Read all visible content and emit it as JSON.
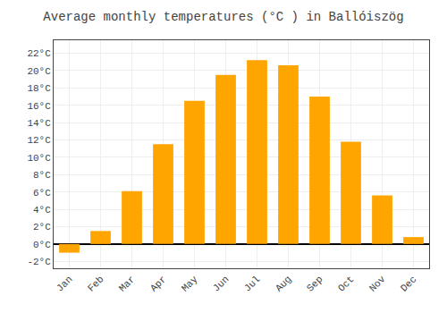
{
  "chart_data": {
    "type": "bar",
    "title": "Average monthly temperatures (°C ) in Ballóiszög",
    "categories": [
      "Jan",
      "Feb",
      "Mar",
      "Apr",
      "May",
      "Jun",
      "Jul",
      "Aug",
      "Sep",
      "Oct",
      "Nov",
      "Dec"
    ],
    "values": [
      -1.0,
      1.5,
      6.1,
      11.5,
      16.5,
      19.5,
      21.2,
      20.6,
      17.0,
      11.8,
      5.6,
      0.8
    ],
    "color": "#FFA500",
    "ylim": [
      -2.8,
      23.5
    ],
    "yticks": [
      {
        "value": 22,
        "label": "22°C"
      },
      {
        "value": 20,
        "label": "20°C"
      },
      {
        "value": 18,
        "label": "18°C"
      },
      {
        "value": 16,
        "label": "16°C"
      },
      {
        "value": 14,
        "label": "14°C"
      },
      {
        "value": 12,
        "label": "12°C"
      },
      {
        "value": 10,
        "label": "10°C"
      },
      {
        "value": 8,
        "label": "8°C"
      },
      {
        "value": 6,
        "label": "6°C"
      },
      {
        "value": 4,
        "label": "4°C"
      },
      {
        "value": 2,
        "label": "2°C"
      },
      {
        "value": 0,
        "label": "0°C"
      },
      {
        "value": -2,
        "label": "-2°C"
      }
    ],
    "grid": true
  }
}
